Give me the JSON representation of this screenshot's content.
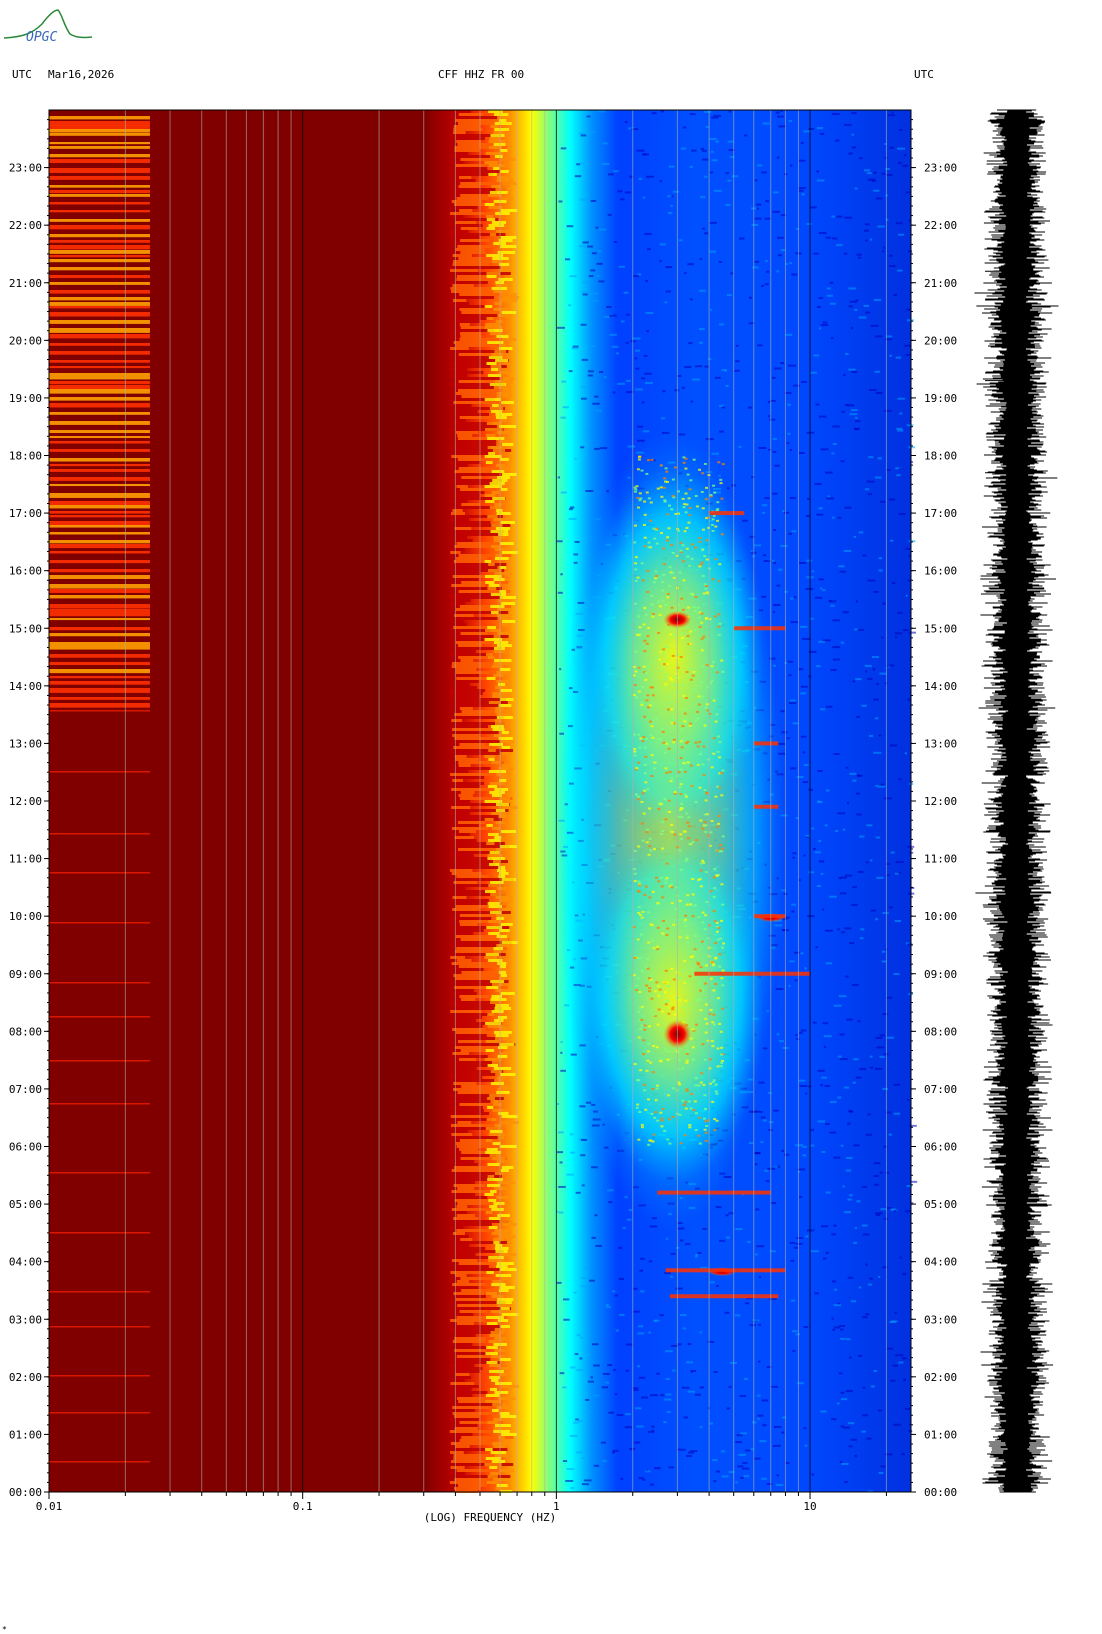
{
  "header": {
    "left_utc": "UTC",
    "date": "Mar16,2026",
    "station": "CFF HHZ FR 00",
    "right_utc": "UTC"
  },
  "logo": {
    "text": "OPGC"
  },
  "footer_mark": "*",
  "chart_data": {
    "type": "heatmap",
    "title": "CFF HHZ FR 00",
    "xlabel": "(LOG) FREQUENCY (HZ)",
    "ylabel": "",
    "x_scale": "log",
    "xlim": [
      0.01,
      25
    ],
    "x_ticks": [
      0.01,
      0.1,
      1,
      10
    ],
    "x_tick_labels": [
      "0.01",
      "0.1",
      "1",
      "10"
    ],
    "y_unit": "UTC hours",
    "ylim": [
      0,
      24
    ],
    "y_ticks": [
      0,
      1,
      2,
      3,
      4,
      5,
      6,
      7,
      8,
      9,
      10,
      11,
      12,
      13,
      14,
      15,
      16,
      17,
      18,
      19,
      20,
      21,
      22,
      23
    ],
    "y_tick_labels": [
      "00:00",
      "01:00",
      "02:00",
      "03:00",
      "04:00",
      "05:00",
      "06:00",
      "07:00",
      "08:00",
      "09:00",
      "10:00",
      "11:00",
      "12:00",
      "13:00",
      "14:00",
      "15:00",
      "16:00",
      "17:00",
      "18:00",
      "19:00",
      "20:00",
      "21:00",
      "22:00",
      "23:00"
    ],
    "colormap": [
      "#000090",
      "#0000ff",
      "#0080ff",
      "#00ffff",
      "#80ff80",
      "#ffff00",
      "#ff8000",
      "#ff0000",
      "#800000"
    ],
    "regions": [
      {
        "f_min": 0.01,
        "f_max": 0.4,
        "level": "saturated",
        "color": "#800000"
      },
      {
        "f_min": 0.4,
        "f_max": 0.6,
        "level": "high",
        "color": "#ff8000"
      },
      {
        "f_min": 0.6,
        "f_max": 0.9,
        "level": "medium",
        "color": "#00ffff"
      },
      {
        "f_min": 1.0,
        "f_max": 25,
        "level": "low",
        "color": "#0040ff"
      }
    ],
    "energy_bursts": [
      {
        "f_center": 2.8,
        "t_start": 6.0,
        "t_end": 18.5,
        "color": "#ffff00"
      },
      {
        "f_center": 3.0,
        "t_start": 15.0,
        "t_end": 15.3,
        "color": "#800000"
      },
      {
        "f_center": 3.0,
        "t_start": 7.7,
        "t_end": 8.2,
        "color": "#800000"
      },
      {
        "f_center": 4.5,
        "t_start": 3.75,
        "t_end": 3.9,
        "color": "#ff0000"
      },
      {
        "f_center": 7.0,
        "t_start": 9.9,
        "t_end": 10.05,
        "color": "#800000"
      }
    ],
    "grid": true,
    "legend": "none",
    "waveform": {
      "channel": "CFF HHZ FR 00",
      "t_range": [
        0,
        24
      ]
    }
  }
}
